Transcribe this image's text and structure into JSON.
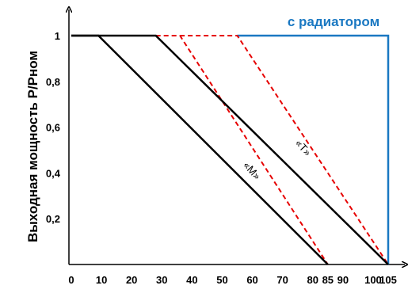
{
  "chart_data": {
    "type": "line",
    "ylabel": "Выходная мощность Р/Рном",
    "xlabel": "",
    "x_ticks": [
      "0",
      "10",
      "20",
      "30",
      "40",
      "50",
      "60",
      "70",
      "80",
      "85",
      "90",
      "100",
      "105"
    ],
    "x_tick_values": [
      0,
      10,
      20,
      30,
      40,
      50,
      60,
      70,
      80,
      85,
      90,
      100,
      105
    ],
    "y_ticks": [
      "0,2",
      "0,4",
      "0,6",
      "0,8",
      "1"
    ],
    "y_tick_values": [
      0.2,
      0.4,
      0.6,
      0.8,
      1.0
    ],
    "xlim": [
      0,
      110
    ],
    "ylim": [
      0,
      1.1
    ],
    "grid": false,
    "annotation": "с радиатором",
    "series": [
      {
        "name": "",
        "style": "solid",
        "color": "#000000",
        "points": [
          [
            0,
            1
          ],
          [
            9,
            1
          ],
          [
            85,
            0
          ]
        ]
      },
      {
        "name": "«M»",
        "style": "solid",
        "color": "#000000",
        "points": [
          [
            0,
            1
          ],
          [
            28,
            1
          ],
          [
            105,
            0
          ]
        ]
      },
      {
        "name": "",
        "style": "dashed",
        "color": "#e60000",
        "points": [
          [
            28,
            1
          ],
          [
            36,
            1
          ],
          [
            85,
            0
          ]
        ]
      },
      {
        "name": "«T»",
        "style": "dashed",
        "color": "#e60000",
        "points": [
          [
            36,
            1
          ],
          [
            55,
            1
          ],
          [
            105,
            0
          ]
        ]
      },
      {
        "name": "с радиатором",
        "style": "solid",
        "color": "#1a78c2",
        "points": [
          [
            55,
            1
          ],
          [
            105,
            1
          ],
          [
            105,
            0
          ]
        ]
      }
    ],
    "curve_labels": [
      {
        "text": "«M»",
        "x": 59,
        "y": 0.4
      },
      {
        "text": "«T»",
        "x": 76,
        "y": 0.5
      }
    ]
  }
}
